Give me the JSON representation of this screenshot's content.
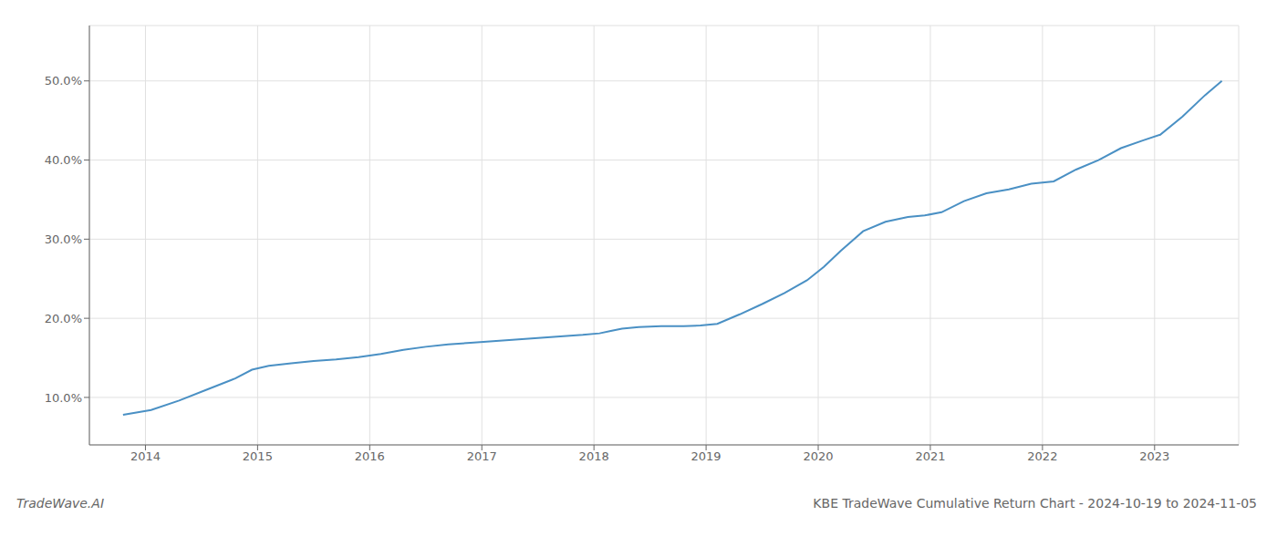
{
  "chart_data": {
    "type": "line",
    "title": "KBE TradeWave Cumulative Return Chart - 2024-10-19 to 2024-11-05",
    "annotations": [
      "TradeWave.AI"
    ],
    "x": [
      2013.8,
      2014.05,
      2014.3,
      2014.55,
      2014.8,
      2014.95,
      2015.1,
      2015.3,
      2015.5,
      2015.7,
      2015.9,
      2016.1,
      2016.3,
      2016.5,
      2016.7,
      2016.9,
      2017.1,
      2017.3,
      2017.5,
      2017.7,
      2017.9,
      2018.05,
      2018.15,
      2018.25,
      2018.4,
      2018.6,
      2018.8,
      2018.95,
      2019.1,
      2019.3,
      2019.5,
      2019.7,
      2019.9,
      2020.05,
      2020.2,
      2020.4,
      2020.6,
      2020.8,
      2020.95,
      2021.1,
      2021.3,
      2021.5,
      2021.7,
      2021.9,
      2022.1,
      2022.3,
      2022.5,
      2022.7,
      2022.9,
      2023.05,
      2023.25,
      2023.45,
      2023.6
    ],
    "values": [
      0.078,
      0.084,
      0.096,
      0.11,
      0.124,
      0.135,
      0.14,
      0.143,
      0.146,
      0.148,
      0.151,
      0.155,
      0.16,
      0.164,
      0.167,
      0.169,
      0.171,
      0.173,
      0.175,
      0.177,
      0.179,
      0.181,
      0.184,
      0.187,
      0.189,
      0.19,
      0.19,
      0.191,
      0.193,
      0.205,
      0.218,
      0.232,
      0.248,
      0.265,
      0.285,
      0.31,
      0.322,
      0.328,
      0.33,
      0.334,
      0.348,
      0.358,
      0.363,
      0.37,
      0.373,
      0.388,
      0.4,
      0.415,
      0.425,
      0.432,
      0.455,
      0.482,
      0.5
    ],
    "color": "#4a90c4",
    "xlim": [
      2013.5,
      2023.75
    ],
    "ylim": [
      0.04,
      0.57
    ],
    "xticks": [
      2014,
      2015,
      2016,
      2017,
      2018,
      2019,
      2020,
      2021,
      2022,
      2023
    ],
    "yticks": [
      {
        "value": 0.1,
        "label": "10.0%"
      },
      {
        "value": 0.2,
        "label": "20.0%"
      },
      {
        "value": 0.3,
        "label": "30.0%"
      },
      {
        "value": 0.4,
        "label": "40.0%"
      },
      {
        "value": 0.5,
        "label": "50.0%"
      }
    ],
    "grid": true
  }
}
